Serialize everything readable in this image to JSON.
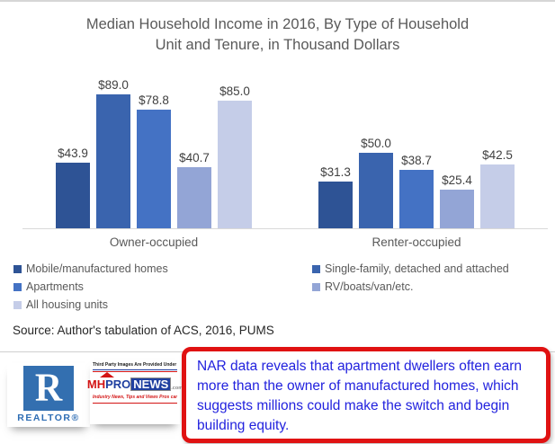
{
  "title": {
    "line1": "Median Household Income in 2016, By Type of Household",
    "line2": "Unit and Tenure, in Thousand Dollars"
  },
  "chart_data": {
    "type": "bar",
    "title": "Median Household Income in 2016, By Type of Household Unit and Tenure, in Thousand Dollars",
    "categories": [
      "Owner-occupied",
      "Renter-occupied"
    ],
    "series": [
      {
        "name": "Mobile/manufactured homes",
        "color": "#2E5395",
        "values": [
          43.9,
          31.3
        ]
      },
      {
        "name": "Single-family, detached and attached",
        "color": "#3A64AE",
        "values": [
          89.0,
          50.0
        ]
      },
      {
        "name": "Apartments",
        "color": "#4472C4",
        "values": [
          78.8,
          38.7
        ]
      },
      {
        "name": "RV/boats/van/etc.",
        "color": "#93A5D6",
        "values": [
          40.7,
          25.4
        ]
      },
      {
        "name": "All housing units",
        "color": "#C5CDE8",
        "values": [
          85.0,
          42.5
        ]
      }
    ],
    "value_prefix": "$",
    "value_decimals": 1,
    "ylim": [
      0,
      100
    ],
    "grid": false,
    "legend_position": "bottom",
    "data_labels": true
  },
  "source_note": "Source: Author's tabulation of ACS, 2016, PUMS",
  "annotation_box": {
    "text": "NAR data reveals that apartment dwellers often earn more than the owner of manufactured homes, which suggests millions could make the switch and begin building equity.",
    "border_color": "#E01212",
    "text_color": "#2222DE"
  },
  "logos": {
    "realtor": {
      "letter": "R",
      "label": "REALTOR®"
    },
    "mhpronews": {
      "disclaimer": "Third Party Images Are Provided Under Fair Use Guidelines",
      "wordmark_mh": "MH",
      "wordmark_pro": "PRO",
      "wordmark_news": "NEWS",
      "wordmark_com": ".com",
      "tagline": "Industry News, Tips and Views Pros can Use"
    }
  }
}
